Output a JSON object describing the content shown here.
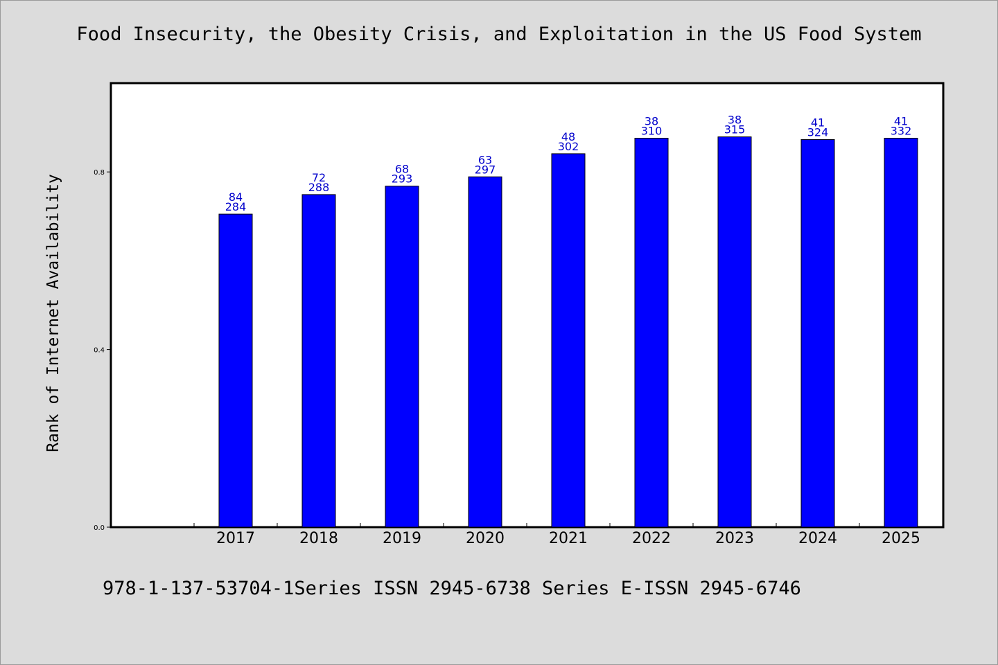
{
  "footer": "978-1-137-53704-1Series ISSN 2945-6738 Series E-ISSN 2945-6746",
  "colors": {
    "background": "#dcdcdc",
    "bar": "#0000ff",
    "data_label": "#0000cc"
  },
  "chart_data": {
    "type": "bar",
    "title": "Food Insecurity, the Obesity Crisis, and Exploitation in the US Food System",
    "xlabel": "",
    "ylabel": "Rank of Internet Availability",
    "ylim": [
      0,
      1.0
    ],
    "yticks": [
      "0.0",
      "0.4",
      "0.8"
    ],
    "categories": [
      "",
      "2017",
      "2018",
      "2019",
      "2020",
      "2021",
      "2022",
      "2023",
      "2024",
      "2025"
    ],
    "values": [
      null,
      0.705,
      0.749,
      0.768,
      0.789,
      0.841,
      0.876,
      0.879,
      0.873,
      0.876
    ],
    "labels_top": [
      "",
      "84",
      "72",
      "68",
      "63",
      "48",
      "38",
      "38",
      "41",
      "41"
    ],
    "labels_bottom": [
      "",
      "284",
      "288",
      "293",
      "297",
      "302",
      "310",
      "315",
      "324",
      "332"
    ],
    "grid": false,
    "legend": "none"
  }
}
